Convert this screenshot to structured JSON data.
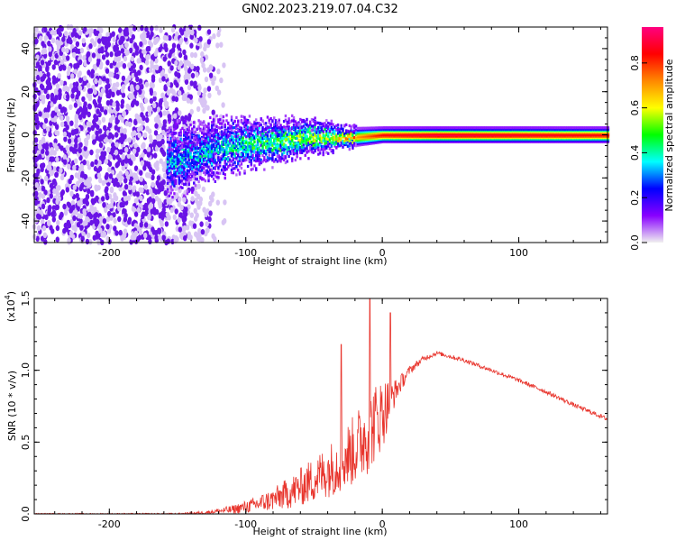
{
  "figure_title": "GN02.2023.219.07.04.C32",
  "colors": {
    "snr_line": "#e8342c",
    "axis": "#000000",
    "scatter_light": "#d8c4f4",
    "scatter_dark": "#6a14e6"
  },
  "colorbar": {
    "label": "Normalized spectral amplitude",
    "ticks": [
      "0.0",
      "0.2",
      "0.4",
      "0.6",
      "0.8"
    ],
    "tick_values": [
      0.0,
      0.2,
      0.4,
      0.6,
      0.8
    ],
    "range": [
      0,
      0.96
    ],
    "stops": [
      "#f0f0f0",
      "#8800ff",
      "#0000ff",
      "#00ffff",
      "#00ff00",
      "#ffff00",
      "#ff8800",
      "#ff0000",
      "#ff0080"
    ]
  },
  "chart_data": [
    {
      "type": "heatmap",
      "title": "",
      "xlabel": "Height of straight line (km)",
      "ylabel": "Frequency (Hz)",
      "xlim": [
        -255,
        165
      ],
      "ylim": [
        -50,
        50
      ],
      "xticks": [
        -200,
        -100,
        0,
        100
      ],
      "xtick_labels": [
        "-200",
        "-100",
        "0",
        "100"
      ],
      "yticks": [
        -40,
        -20,
        0,
        20,
        40
      ],
      "ytick_labels": [
        "-40",
        "-20",
        "0",
        "20",
        "40"
      ],
      "noise_region": {
        "x_range": [
          -255,
          -140
        ],
        "y_range": [
          -50,
          50
        ],
        "amplitude": 0.05
      },
      "band_center_hz": [
        [
          -155,
          -12
        ],
        [
          -140,
          -9
        ],
        [
          -120,
          -6
        ],
        [
          -100,
          -4
        ],
        [
          -80,
          -3
        ],
        [
          -60,
          -1
        ],
        [
          -40,
          -1
        ],
        [
          -20,
          -1
        ],
        [
          0,
          0
        ],
        [
          40,
          0
        ],
        [
          80,
          0
        ],
        [
          120,
          0
        ],
        [
          165,
          0
        ]
      ],
      "band_halfwidth_hz": [
        [
          -155,
          12
        ],
        [
          -120,
          10
        ],
        [
          -80,
          8
        ],
        [
          -50,
          6
        ],
        [
          -30,
          4
        ],
        [
          0,
          3
        ],
        [
          165,
          3
        ]
      ],
      "peak_amplitude": [
        [
          -155,
          0.3
        ],
        [
          -120,
          0.35
        ],
        [
          -80,
          0.45
        ],
        [
          -40,
          0.55
        ],
        [
          -20,
          0.7
        ],
        [
          0,
          0.85
        ],
        [
          40,
          0.9
        ],
        [
          165,
          0.85
        ]
      ]
    },
    {
      "type": "line",
      "title": "",
      "xlabel": "Height of straight line (km)",
      "ylabel": "SNR (10 * v/v)",
      "scale_label": "(x10",
      "scale_exponent": "4",
      "scale_close": ")",
      "xlim": [
        -255,
        165
      ],
      "ylim": [
        0,
        1.5
      ],
      "xticks": [
        -200,
        -100,
        0,
        100
      ],
      "xtick_labels": [
        "-200",
        "-100",
        "0",
        "100"
      ],
      "yticks": [
        0.0,
        0.5,
        1.0,
        1.5
      ],
      "ytick_labels": [
        "0.0",
        "0.5",
        "1.0",
        "1.5"
      ],
      "series": [
        {
          "name": "SNR",
          "x": [
            -255,
            -200,
            -150,
            -130,
            -110,
            -95,
            -80,
            -65,
            -50,
            -35,
            -20,
            -10,
            0,
            10,
            20,
            30,
            40,
            60,
            80,
            100,
            120,
            140,
            165
          ],
          "y": [
            0.0,
            0.0,
            0.0,
            0.01,
            0.03,
            0.06,
            0.1,
            0.16,
            0.24,
            0.33,
            0.45,
            0.58,
            0.7,
            0.86,
            1.0,
            1.08,
            1.12,
            1.07,
            1.0,
            0.93,
            0.85,
            0.76,
            0.66
          ],
          "noise_amplitude": [
            0.005,
            0.005,
            0.006,
            0.01,
            0.03,
            0.05,
            0.08,
            0.12,
            0.16,
            0.2,
            0.25,
            0.3,
            0.25,
            0.08,
            0.03,
            0.02,
            0.015,
            0.015,
            0.015,
            0.015,
            0.015,
            0.015,
            0.015
          ],
          "peaks": [
            [
              -9,
              1.5
            ],
            [
              6,
              1.4
            ],
            [
              -30,
              1.18
            ]
          ]
        }
      ]
    }
  ]
}
